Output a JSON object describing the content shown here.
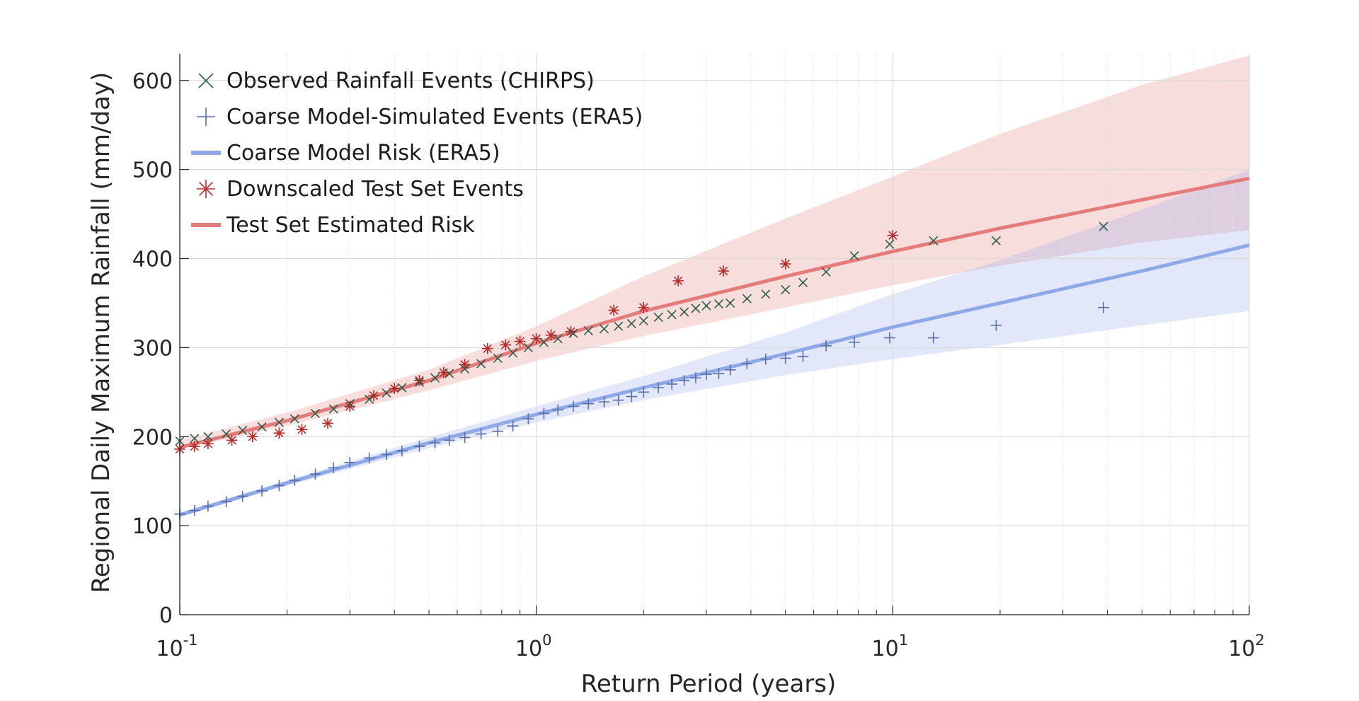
{
  "chart_data": {
    "type": "scatter",
    "title": "",
    "xlabel": "Return Period (years)",
    "ylabel": "Regional Daily Maximum Rainfall (mm/day)",
    "xscale": "log",
    "xlim": [
      0.1,
      100
    ],
    "ylim": [
      0,
      630
    ],
    "x_ticks": [
      {
        "base": "10",
        "exp": "-1",
        "value": 0.1
      },
      {
        "base": "10",
        "exp": "0",
        "value": 1
      },
      {
        "base": "10",
        "exp": "1",
        "value": 10
      },
      {
        "base": "10",
        "exp": "2",
        "value": 100
      }
    ],
    "y_ticks": [
      "0",
      "100",
      "200",
      "300",
      "400",
      "500",
      "600"
    ],
    "grid": true,
    "legend_position": "top-left",
    "legend": [
      {
        "label": "Observed Rainfall Events (CHIRPS)",
        "marker": "x",
        "color": "#2f5d4a"
      },
      {
        "label": "Coarse Model-Simulated Events (ERA5)",
        "marker": "+",
        "color": "#5a6ea8"
      },
      {
        "label": "Coarse Model Risk (ERA5)",
        "marker": "line",
        "color": "#8fa8e8"
      },
      {
        "label": "Downscaled Test Set Events",
        "marker": "*",
        "color": "#b52a2a"
      },
      {
        "label": "Test Set Estimated Risk",
        "marker": "line",
        "color": "#e57c7c"
      }
    ],
    "series": [
      {
        "name": "Observed Rainfall Events (CHIRPS)",
        "kind": "scatter",
        "marker": "x",
        "color": "#2f5d4a",
        "x": [
          0.1,
          0.11,
          0.12,
          0.135,
          0.15,
          0.17,
          0.19,
          0.21,
          0.24,
          0.27,
          0.3,
          0.34,
          0.38,
          0.42,
          0.47,
          0.52,
          0.57,
          0.63,
          0.7,
          0.78,
          0.86,
          0.95,
          1.05,
          1.15,
          1.27,
          1.4,
          1.55,
          1.7,
          1.85,
          2.0,
          2.2,
          2.4,
          2.6,
          2.8,
          3.0,
          3.25,
          3.5,
          3.9,
          4.4,
          5.0,
          5.6,
          6.5,
          7.8,
          9.8,
          13.0,
          19.5,
          39.0
        ],
        "y": [
          195,
          198,
          200,
          203,
          207,
          211,
          216,
          220,
          226,
          231,
          237,
          242,
          249,
          255,
          261,
          266,
          271,
          276,
          282,
          288,
          294,
          300,
          306,
          310,
          316,
          319,
          321,
          324,
          327,
          330,
          334,
          337,
          340,
          344,
          347,
          349,
          350,
          355,
          360,
          365,
          373,
          385,
          403,
          416,
          420,
          420,
          436
        ]
      },
      {
        "name": "Coarse Model-Simulated Events (ERA5)",
        "kind": "scatter",
        "marker": "+",
        "color": "#5a6ea8",
        "x": [
          0.1,
          0.11,
          0.12,
          0.135,
          0.15,
          0.17,
          0.19,
          0.21,
          0.24,
          0.27,
          0.3,
          0.34,
          0.38,
          0.42,
          0.47,
          0.52,
          0.57,
          0.63,
          0.7,
          0.78,
          0.86,
          0.95,
          1.05,
          1.15,
          1.27,
          1.4,
          1.55,
          1.7,
          1.85,
          2.0,
          2.2,
          2.4,
          2.6,
          2.8,
          3.0,
          3.25,
          3.5,
          3.9,
          4.4,
          5.0,
          5.6,
          6.5,
          7.8,
          9.8,
          13.0,
          19.5,
          39.0
        ],
        "y": [
          113,
          117,
          122,
          127,
          133,
          139,
          145,
          151,
          158,
          165,
          171,
          176,
          180,
          184,
          189,
          193,
          196,
          199,
          203,
          206,
          212,
          220,
          226,
          230,
          234,
          237,
          239,
          241,
          245,
          250,
          255,
          259,
          263,
          266,
          270,
          271,
          275,
          282,
          287,
          288,
          290,
          302,
          306,
          311,
          311,
          325,
          345
        ]
      },
      {
        "name": "Downscaled Test Set Events",
        "kind": "scatter",
        "marker": "*",
        "color": "#b52a2a",
        "x": [
          0.1,
          0.11,
          0.12,
          0.14,
          0.16,
          0.19,
          0.22,
          0.26,
          0.3,
          0.35,
          0.4,
          0.47,
          0.55,
          0.63,
          0.73,
          0.82,
          0.9,
          1.0,
          1.1,
          1.25,
          1.65,
          2.0,
          2.5,
          3.35,
          5.0,
          10.0
        ],
        "y": [
          186,
          189,
          192,
          196,
          200,
          204,
          208,
          215,
          234,
          246,
          254,
          263,
          272,
          281,
          299,
          303,
          307,
          310,
          314,
          318,
          342,
          345,
          375,
          386,
          394,
          426
        ]
      },
      {
        "name": "Test Set Estimated Risk",
        "kind": "line",
        "color": "#e57c7c",
        "x": [
          0.1,
          0.2,
          0.5,
          1,
          2,
          5,
          10,
          20,
          50,
          100
        ],
        "y": [
          188,
          218,
          263,
          305,
          341,
          380,
          408,
          434,
          466,
          490
        ],
        "band_lower": [
          186,
          212,
          252,
          285,
          313,
          345,
          370,
          392,
          418,
          432
        ],
        "band_upper": [
          196,
          227,
          275,
          324,
          380,
          445,
          492,
          540,
          595,
          628
        ]
      },
      {
        "name": "Coarse Model Risk (ERA5)",
        "kind": "line",
        "color": "#8fa8e8",
        "x": [
          0.1,
          0.2,
          0.5,
          1,
          2,
          5,
          10,
          20,
          50,
          100
        ],
        "y": [
          112,
          148,
          193,
          225,
          255,
          293,
          323,
          350,
          386,
          415
        ],
        "band_lower": [
          110,
          145,
          187,
          216,
          241,
          269,
          287,
          303,
          325,
          341
        ],
        "band_upper": [
          115,
          151,
          199,
          234,
          268,
          317,
          360,
          398,
          455,
          500
        ]
      }
    ]
  }
}
